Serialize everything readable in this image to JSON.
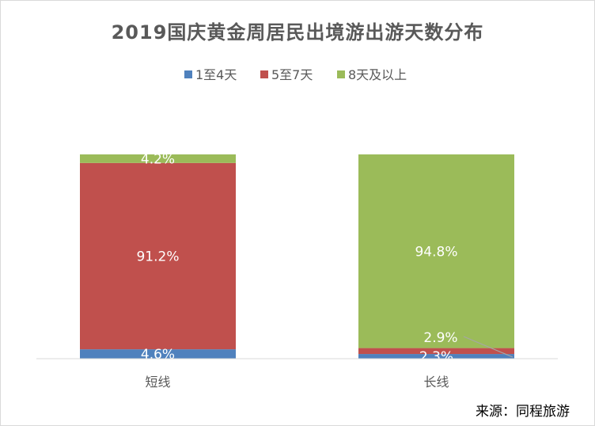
{
  "chart_data": {
    "type": "bar",
    "stacked": "percent",
    "title": "2019国庆黄金周居民出境游出游天数分布",
    "categories": [
      "短线",
      "长线"
    ],
    "series": [
      {
        "name": "1至4天",
        "color": "#4f81bd",
        "values": [
          4.6,
          2.3
        ],
        "labels": [
          "4.6%",
          "2.3%"
        ]
      },
      {
        "name": "5至7天",
        "color": "#c0504d",
        "values": [
          91.2,
          2.9
        ],
        "labels": [
          "91.2%",
          "2.9%"
        ]
      },
      {
        "name": "8天及以上",
        "color": "#9bbb59",
        "values": [
          4.2,
          94.8
        ],
        "labels": [
          "4.2%",
          "94.8%"
        ]
      }
    ],
    "ylim": [
      0,
      100
    ],
    "grid": false,
    "legend_position": "top"
  },
  "source": "来源：同程旅游"
}
